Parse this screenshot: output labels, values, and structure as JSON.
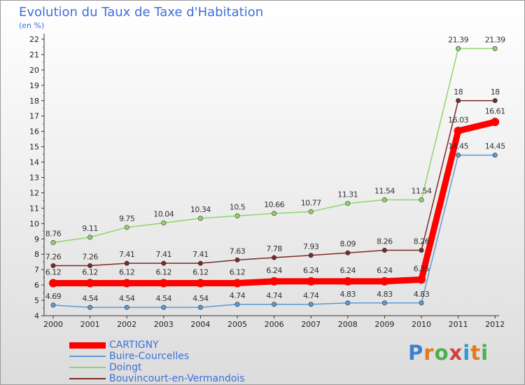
{
  "title": "Evolution du Taux de Taxe d'Habitation",
  "unit_label": "(en %)",
  "logo_text": "Proxiti",
  "chart_data": {
    "type": "line",
    "title": "Evolution du Taux de Taxe d'Habitation",
    "ylabel": "(en %)",
    "xlabel": "",
    "x": [
      "2000",
      "2001",
      "2002",
      "2003",
      "2004",
      "2005",
      "2006",
      "2007",
      "2008",
      "2009",
      "2010",
      "2011",
      "2012"
    ],
    "ylim": [
      4,
      22
    ],
    "yticks": [
      "4",
      "5",
      "6",
      "7",
      "8",
      "9",
      "10",
      "11",
      "12",
      "13",
      "14",
      "15",
      "16",
      "17",
      "18",
      "19",
      "20",
      "21",
      "22"
    ],
    "grid": false,
    "legend": "bottom-left",
    "series": [
      {
        "name": "Buire-Courcelles",
        "color": "#5b9bd5",
        "values": [
          4.69,
          4.54,
          4.54,
          4.54,
          4.54,
          4.74,
          4.74,
          4.74,
          4.83,
          4.83,
          4.83,
          14.45,
          14.45
        ],
        "labels": [
          "4.69",
          "4.54",
          "4.54",
          "4.54",
          "4.54",
          "4.74",
          "4.74",
          "4.74",
          "4.83",
          "4.83",
          "4.83",
          "14.45",
          "14.45"
        ]
      },
      {
        "name": "Doingt",
        "color": "#8fd46a",
        "values": [
          8.76,
          9.11,
          9.75,
          10.04,
          10.34,
          10.5,
          10.66,
          10.77,
          11.31,
          11.54,
          11.54,
          21.39,
          21.39
        ],
        "labels": [
          "8.76",
          "9.11",
          "9.75",
          "10.04",
          "10.34",
          "10.5",
          "10.66",
          "10.77",
          "11.31",
          "11.54",
          "11.54",
          "21.39",
          "21.39"
        ]
      },
      {
        "name": "Bouvincourt-en-Vermandois",
        "color": "#7a2a2a",
        "values": [
          7.26,
          7.26,
          7.41,
          7.41,
          7.41,
          7.63,
          7.78,
          7.93,
          8.09,
          8.26,
          8.26,
          18,
          18
        ],
        "labels": [
          "7.26",
          "7.26",
          "7.41",
          "7.41",
          "7.41",
          "7.63",
          "7.78",
          "7.93",
          "8.09",
          "8.26",
          "8.26",
          "18",
          "18"
        ]
      },
      {
        "name": "CARTIGNY",
        "color": "#ff0000",
        "values": [
          6.12,
          6.12,
          6.12,
          6.12,
          6.12,
          6.12,
          6.24,
          6.24,
          6.24,
          6.24,
          6.35,
          16.03,
          16.61
        ],
        "labels": [
          "6.12",
          "6.12",
          "6.12",
          "6.12",
          "6.12",
          "6.12",
          "6.24",
          "6.24",
          "6.24",
          "6.24",
          "6.35",
          "16.03",
          "16.61"
        ]
      }
    ],
    "legend_order": [
      "CARTIGNY",
      "Buire-Courcelles",
      "Doingt",
      "Bouvincourt-en-Vermandois"
    ]
  }
}
